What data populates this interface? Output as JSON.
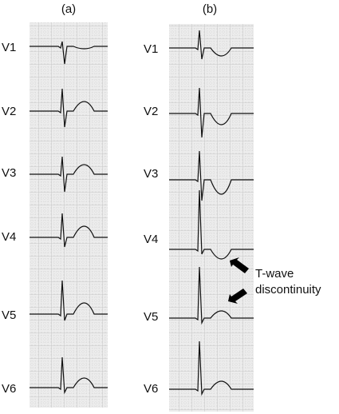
{
  "panels": [
    {
      "label": "(a)",
      "leads": [
        "V1",
        "V2",
        "V3",
        "V4",
        "V5",
        "V6"
      ]
    },
    {
      "label": "(b)",
      "leads": [
        "V1",
        "V2",
        "V3",
        "V4",
        "V5",
        "V6"
      ]
    }
  ],
  "annotation": {
    "lines": [
      "T-wave",
      "discontinuity"
    ]
  }
}
